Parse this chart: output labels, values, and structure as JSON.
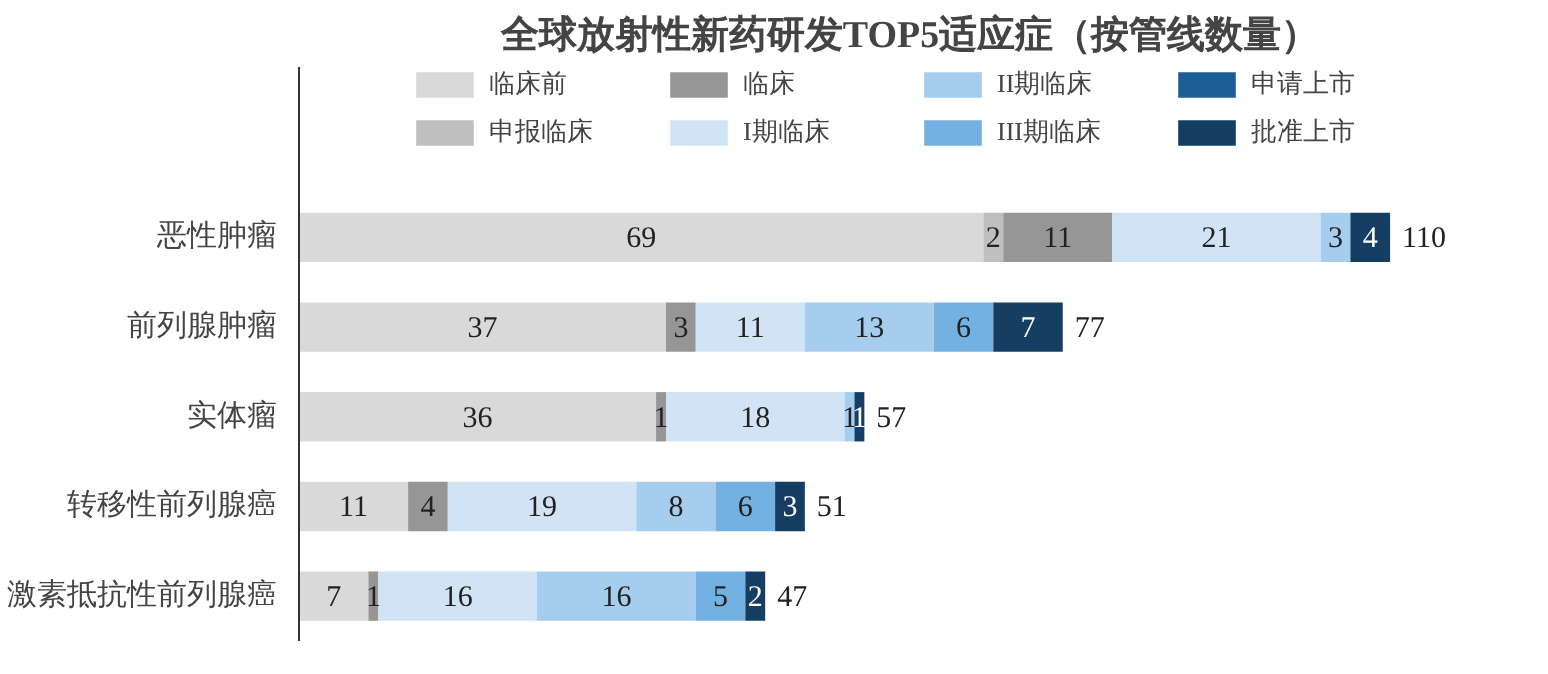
{
  "chart_data": {
    "type": "bar",
    "orientation": "horizontal",
    "stacked": true,
    "title": "全球放射性新药研发TOP5适应症（按管线数量）",
    "categories": [
      "恶性肿瘤",
      "前列腺肿瘤",
      "实体瘤",
      "转移性前列腺癌",
      "激素抵抗性前列腺癌"
    ],
    "series": [
      {
        "name": "临床前",
        "color": "#d9d9d9",
        "values": [
          69,
          37,
          36,
          11,
          7
        ]
      },
      {
        "name": "申报临床",
        "color": "#bfbfbf",
        "values": [
          2,
          null,
          null,
          null,
          null
        ]
      },
      {
        "name": "临床",
        "color": "#969696",
        "values": [
          11,
          3,
          1,
          4,
          1
        ]
      },
      {
        "name": "I期临床",
        "color": "#d0e4f5",
        "values": [
          21,
          11,
          18,
          19,
          16
        ]
      },
      {
        "name": "II期临床",
        "color": "#a6cdee",
        "values": [
          3,
          13,
          1,
          8,
          16
        ]
      },
      {
        "name": "III期临床",
        "color": "#72b1e2",
        "values": [
          null,
          6,
          null,
          6,
          5
        ]
      },
      {
        "name": "申请上市",
        "color": "#1d5f95",
        "values": [
          null,
          null,
          null,
          null,
          null
        ]
      },
      {
        "name": "批准上市",
        "color": "#153e62",
        "values": [
          4,
          7,
          1,
          3,
          2
        ]
      }
    ],
    "data_labels": true,
    "totals": [
      "110",
      "77",
      "57",
      "51",
      "47"
    ],
    "legend": "top",
    "grid": false
  }
}
